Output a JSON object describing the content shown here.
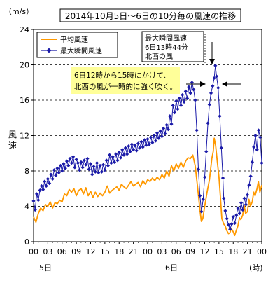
{
  "chart_data": {
    "type": "line",
    "title": "2014年10月5日～6日の10分毎の風速の推移",
    "ylabel": "風速",
    "yunit": "（m/s）",
    "xunit": "(時)",
    "ylim": [
      0,
      24
    ],
    "yticks": [
      0,
      4,
      8,
      12,
      16,
      20,
      24
    ],
    "grid": "horizontal-dashed",
    "legend_position": "top-left",
    "xlim": [
      0,
      48
    ],
    "xtick_labels": [
      "00",
      "03",
      "06",
      "09",
      "12",
      "15",
      "18",
      "21",
      "00",
      "03",
      "06",
      "09",
      "12",
      "15",
      "18",
      "21",
      "00"
    ],
    "xtick_hours": [
      0,
      3,
      6,
      9,
      12,
      15,
      18,
      21,
      24,
      27,
      30,
      33,
      36,
      39,
      42,
      45,
      48
    ],
    "day_labels": [
      {
        "text": "5日",
        "hour": 0
      },
      {
        "text": "6日",
        "hour": 24
      }
    ],
    "colors": {
      "avg": "#ff9900",
      "gust": "#1a1aa8",
      "highlight_bg": "#ffff99"
    },
    "series": [
      {
        "name": "平均風速",
        "style": "line",
        "points": [
          [
            0,
            2.8
          ],
          [
            0.5,
            2.2
          ],
          [
            1,
            3.2
          ],
          [
            1.5,
            3.8
          ],
          [
            2,
            3.5
          ],
          [
            2.5,
            4.2
          ],
          [
            3,
            4.0
          ],
          [
            3.5,
            4.5
          ],
          [
            4,
            3.8
          ],
          [
            4.5,
            4.4
          ],
          [
            5,
            4.3
          ],
          [
            5.5,
            4.7
          ],
          [
            6,
            4.5
          ],
          [
            6.5,
            5.4
          ],
          [
            7,
            5.2
          ],
          [
            7.5,
            5.9
          ],
          [
            8,
            5.6
          ],
          [
            8.5,
            6.0
          ],
          [
            9,
            5.2
          ],
          [
            9.5,
            5.8
          ],
          [
            10,
            6.0
          ],
          [
            10.5,
            5.4
          ],
          [
            11,
            6.1
          ],
          [
            11.5,
            5.2
          ],
          [
            12,
            5.7
          ],
          [
            12.5,
            5.0
          ],
          [
            13,
            5.6
          ],
          [
            13.5,
            5.1
          ],
          [
            14,
            5.5
          ],
          [
            14.5,
            5.2
          ],
          [
            15,
            5.6
          ],
          [
            15.5,
            6.3
          ],
          [
            16,
            5.5
          ],
          [
            16.5,
            5.8
          ],
          [
            17,
            6.0
          ],
          [
            17.5,
            6.2
          ],
          [
            18,
            5.8
          ],
          [
            18.5,
            6.5
          ],
          [
            19,
            6.2
          ],
          [
            19.5,
            6.0
          ],
          [
            20,
            6.4
          ],
          [
            20.5,
            6.8
          ],
          [
            21,
            6.3
          ],
          [
            21.5,
            6.5
          ],
          [
            22,
            6.7
          ],
          [
            22.5,
            6.2
          ],
          [
            23,
            6.9
          ],
          [
            23.5,
            6.5
          ],
          [
            24,
            7.0
          ],
          [
            24.5,
            6.8
          ],
          [
            25,
            7.2
          ],
          [
            25.5,
            6.9
          ],
          [
            26,
            7.3
          ],
          [
            26.5,
            7.0
          ],
          [
            27,
            7.6
          ],
          [
            27.5,
            7.2
          ],
          [
            28,
            8.0
          ],
          [
            28.5,
            7.4
          ],
          [
            29,
            8.6
          ],
          [
            29.5,
            8.0
          ],
          [
            30,
            8.8
          ],
          [
            30.5,
            8.3
          ],
          [
            31,
            9.0
          ],
          [
            31.5,
            8.4
          ],
          [
            32,
            9.1
          ],
          [
            32.5,
            9.5
          ],
          [
            33,
            9.4
          ],
          [
            33.5,
            9.8
          ],
          [
            34,
            8.6
          ],
          [
            34.5,
            6.2
          ],
          [
            35,
            3.6
          ],
          [
            35.3,
            2.3
          ],
          [
            35.6,
            2.6
          ],
          [
            36,
            4.0
          ],
          [
            36.5,
            5.6
          ],
          [
            37,
            7.0
          ],
          [
            37.5,
            9.4
          ],
          [
            37.8,
            10.2
          ],
          [
            38,
            11.7
          ],
          [
            38.3,
            10.9
          ],
          [
            38.6,
            9.3
          ],
          [
            39,
            7.3
          ],
          [
            39.3,
            5.1
          ],
          [
            39.6,
            2.6
          ],
          [
            40,
            2.0
          ],
          [
            40.3,
            1.8
          ],
          [
            40.6,
            1.3
          ],
          [
            41,
            0.9
          ],
          [
            41.3,
            1.0
          ],
          [
            41.6,
            1.5
          ],
          [
            42,
            1.1
          ],
          [
            42.3,
            0.7
          ],
          [
            42.6,
            1.2
          ],
          [
            43,
            1.8
          ],
          [
            43.3,
            2.7
          ],
          [
            43.6,
            2.5
          ],
          [
            44,
            3.0
          ],
          [
            44.3,
            4.1
          ],
          [
            44.6,
            3.2
          ],
          [
            45,
            3.4
          ],
          [
            45.3,
            4.8
          ],
          [
            45.6,
            4.0
          ],
          [
            46,
            4.5
          ],
          [
            46.3,
            5.6
          ],
          [
            46.6,
            5.2
          ],
          [
            47,
            6.0
          ],
          [
            47.3,
            6.8
          ],
          [
            47.6,
            5.6
          ],
          [
            48,
            6.4
          ]
        ]
      },
      {
        "name": "最大瞬間風速",
        "style": "line-markers",
        "points": [
          [
            0,
            4.6
          ],
          [
            0.33,
            3.6
          ],
          [
            0.67,
            5.4
          ],
          [
            1,
            4.7
          ],
          [
            1.33,
            5.8
          ],
          [
            1.67,
            6.3
          ],
          [
            2,
            5.9
          ],
          [
            2.33,
            6.8
          ],
          [
            2.67,
            6.3
          ],
          [
            3,
            7.1
          ],
          [
            3.33,
            6.6
          ],
          [
            3.67,
            7.6
          ],
          [
            4,
            7.1
          ],
          [
            4.33,
            8.1
          ],
          [
            4.67,
            7.5
          ],
          [
            5,
            8.3
          ],
          [
            5.33,
            7.8
          ],
          [
            5.67,
            8.6
          ],
          [
            6,
            8.0
          ],
          [
            6.33,
            8.8
          ],
          [
            6.67,
            8.3
          ],
          [
            7,
            9.1
          ],
          [
            7.33,
            8.6
          ],
          [
            7.67,
            9.4
          ],
          [
            8,
            8.9
          ],
          [
            8.33,
            9.6
          ],
          [
            8.67,
            8.4
          ],
          [
            9,
            9.3
          ],
          [
            9.33,
            8.9
          ],
          [
            9.67,
            8.1
          ],
          [
            10,
            9.0
          ],
          [
            10.33,
            8.4
          ],
          [
            10.67,
            9.2
          ],
          [
            11,
            8.7
          ],
          [
            11.33,
            9.4
          ],
          [
            11.67,
            8.2
          ],
          [
            12,
            8.8
          ],
          [
            12.33,
            7.6
          ],
          [
            12.67,
            8.5
          ],
          [
            13,
            7.9
          ],
          [
            13.33,
            8.9
          ],
          [
            13.67,
            7.8
          ],
          [
            14,
            8.6
          ],
          [
            14.33,
            7.9
          ],
          [
            14.67,
            8.7
          ],
          [
            15,
            8.1
          ],
          [
            15.33,
            9.2
          ],
          [
            15.67,
            8.6
          ],
          [
            16,
            9.8
          ],
          [
            16.33,
            8.9
          ],
          [
            16.67,
            9.6
          ],
          [
            17,
            9.0
          ],
          [
            17.33,
            9.9
          ],
          [
            17.67,
            9.2
          ],
          [
            18,
            10.1
          ],
          [
            18.33,
            9.5
          ],
          [
            18.67,
            10.4
          ],
          [
            19,
            9.8
          ],
          [
            19.33,
            10.6
          ],
          [
            19.67,
            9.9
          ],
          [
            20,
            10.8
          ],
          [
            20.33,
            10.2
          ],
          [
            20.67,
            11.0
          ],
          [
            21,
            10.4
          ],
          [
            21.33,
            10.9
          ],
          [
            21.67,
            10.3
          ],
          [
            22,
            11.1
          ],
          [
            22.33,
            10.6
          ],
          [
            22.67,
            11.3
          ],
          [
            23,
            10.7
          ],
          [
            23.33,
            11.5
          ],
          [
            23.67,
            10.9
          ],
          [
            24,
            11.6
          ],
          [
            24.33,
            11.0
          ],
          [
            24.67,
            11.8
          ],
          [
            25,
            11.2
          ],
          [
            25.33,
            12.0
          ],
          [
            25.67,
            11.4
          ],
          [
            26,
            12.3
          ],
          [
            26.33,
            11.7
          ],
          [
            26.67,
            12.5
          ],
          [
            27,
            11.9
          ],
          [
            27.33,
            12.8
          ],
          [
            27.67,
            12.2
          ],
          [
            28,
            13.2
          ],
          [
            28.33,
            12.7
          ],
          [
            28.67,
            14.2
          ],
          [
            29,
            13.3
          ],
          [
            29.33,
            15.4
          ],
          [
            29.67,
            14.6
          ],
          [
            30,
            15.9
          ],
          [
            30.33,
            15.0
          ],
          [
            30.67,
            16.2
          ],
          [
            31,
            15.4
          ],
          [
            31.33,
            16.6
          ],
          [
            31.67,
            15.8
          ],
          [
            32,
            17.0
          ],
          [
            32.33,
            16.2
          ],
          [
            32.67,
            17.5
          ],
          [
            33,
            16.8
          ],
          [
            33.33,
            18.0
          ],
          [
            33.67,
            17.2
          ],
          [
            34,
            16.0
          ],
          [
            34.33,
            12.6
          ],
          [
            34.67,
            8.2
          ],
          [
            35,
            5.2
          ],
          [
            35.33,
            3.4
          ],
          [
            35.67,
            4.8
          ],
          [
            36,
            7.3
          ],
          [
            36.33,
            10.2
          ],
          [
            36.67,
            13.4
          ],
          [
            37,
            15.5
          ],
          [
            37.33,
            16.8
          ],
          [
            37.67,
            17.6
          ],
          [
            38,
            18.5
          ],
          [
            38.25,
            19.9
          ],
          [
            38.5,
            18.7
          ],
          [
            38.83,
            17.4
          ],
          [
            39.17,
            14.2
          ],
          [
            39.5,
            10.6
          ],
          [
            39.83,
            7.2
          ],
          [
            40,
            4.9
          ],
          [
            40.33,
            3.5
          ],
          [
            40.67,
            2.6
          ],
          [
            41,
            1.9
          ],
          [
            41.33,
            1.4
          ],
          [
            41.67,
            2.0
          ],
          [
            42,
            2.8
          ],
          [
            42.33,
            2.1
          ],
          [
            42.67,
            3.0
          ],
          [
            43,
            3.8
          ],
          [
            43.33,
            3.2
          ],
          [
            43.67,
            4.4
          ],
          [
            44,
            3.6
          ],
          [
            44.33,
            4.9
          ],
          [
            44.67,
            4.2
          ],
          [
            45,
            5.3
          ],
          [
            45.33,
            6.4
          ],
          [
            45.67,
            7.4
          ],
          [
            46,
            9.0
          ],
          [
            46.33,
            10.7
          ],
          [
            46.67,
            12.0
          ],
          [
            47,
            10.4
          ],
          [
            47.33,
            12.6
          ],
          [
            47.67,
            11.8
          ],
          [
            48,
            8.9
          ]
        ]
      }
    ],
    "annotations": [
      {
        "id": "peak-box",
        "lines": [
          "最大瞬間風速",
          "6日13時44分",
          "北西の風"
        ]
      },
      {
        "id": "highlight",
        "lines": [
          "6日12時から15時にかけて、",
          "北西の風が一時的に強く吹く。"
        ]
      }
    ]
  }
}
